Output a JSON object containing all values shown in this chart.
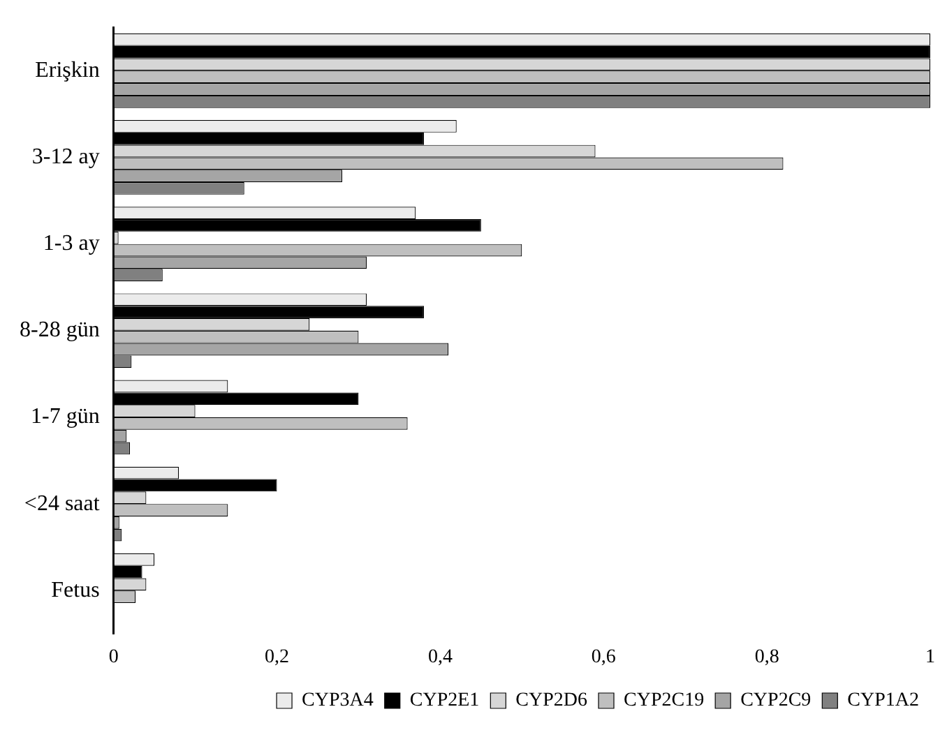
{
  "chart_data": {
    "type": "bar",
    "orientation": "horizontal",
    "categories": [
      "Erişkin",
      "3-12 ay",
      "1-3 ay",
      "8-28 gün",
      "1-7 gün",
      "<24 saat",
      "Fetus"
    ],
    "series": [
      {
        "name": "CYP3A4",
        "color": "#ebebeb",
        "values": [
          1,
          0.42,
          0.37,
          0.31,
          0.14,
          0.08,
          0.05
        ]
      },
      {
        "name": "CYP2E1",
        "color": "#000000",
        "values": [
          1,
          0.38,
          0.45,
          0.38,
          0.3,
          0.2,
          0.035
        ]
      },
      {
        "name": "CYP2D6",
        "color": "#d6d6d6",
        "values": [
          1,
          0.59,
          0.006,
          0.24,
          0.1,
          0.04,
          0.04
        ]
      },
      {
        "name": "CYP2C19",
        "color": "#bfbfbf",
        "values": [
          1,
          0.82,
          0.5,
          0.3,
          0.36,
          0.14,
          0.027
        ]
      },
      {
        "name": "CYP2C9",
        "color": "#a5a5a5",
        "values": [
          1,
          0.28,
          0.31,
          0.41,
          0.016,
          0.007,
          null
        ]
      },
      {
        "name": "CYP1A2",
        "color": "#808080",
        "values": [
          1,
          0.16,
          0.06,
          0.022,
          0.02,
          0.01,
          null
        ]
      }
    ],
    "xlim": [
      0,
      1
    ],
    "xticks": [
      0,
      {
        "value": 0.2,
        "label": "0,2"
      },
      {
        "value": 0.4,
        "label": "0,4"
      },
      {
        "value": 0.6,
        "label": "0,6"
      },
      {
        "value": 0.8,
        "label": "0,8"
      },
      1
    ],
    "grid": false,
    "legend": "bottom right"
  }
}
